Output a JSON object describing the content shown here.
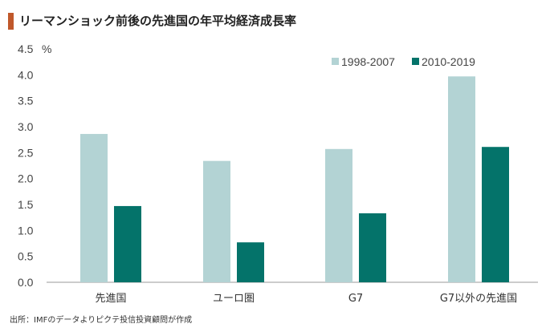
{
  "title": "リーマンショック前後の先進国の年平均経済成長率",
  "source": "出所：IMFのデータよりピクテ投信投資顧問が作成",
  "colors": {
    "accent": "#c0582b",
    "series1": "#b3d3d4",
    "series2": "#04736a"
  },
  "chart_data": {
    "type": "bar",
    "unit": "%",
    "categories": [
      "先進国",
      "ユーロ圏",
      "G7",
      "G7以外の先進国"
    ],
    "series": [
      {
        "name": "1998-2007",
        "values": [
          2.86,
          2.34,
          2.57,
          3.97
        ]
      },
      {
        "name": "2010-2019",
        "values": [
          1.47,
          0.77,
          1.33,
          2.61
        ]
      }
    ],
    "ylim": [
      0,
      4.5
    ],
    "yticks": [
      "0.0",
      "0.5",
      "1.0",
      "1.5",
      "2.0",
      "2.5",
      "3.0",
      "3.5",
      "4.0",
      "4.5"
    ],
    "grid": false,
    "legend_position": "top-right"
  }
}
